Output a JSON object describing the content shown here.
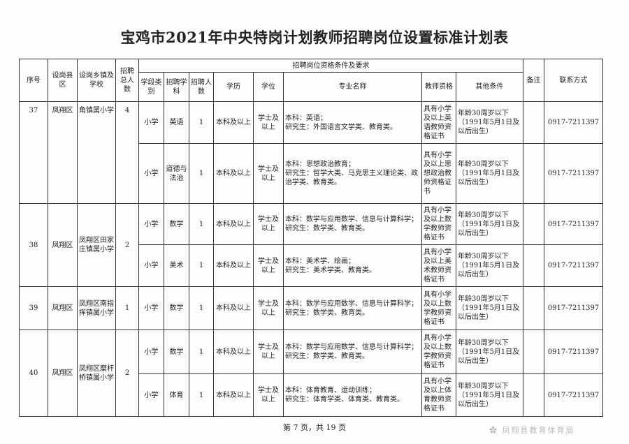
{
  "title": "宝鸡市2021年中央特岗计划教师招聘岗位设置标准计划表",
  "headers": {
    "no": "序号",
    "county": "设岗县区",
    "school": "设岗乡镇及学校",
    "total": "招聘总人数",
    "group": "招聘岗位资格条件及要求",
    "stage": "学段类别",
    "subject": "招聘学科",
    "count": "招聘人数",
    "edu": "学历",
    "degree": "学位",
    "major": "专业名称",
    "cert": "教师资格",
    "other": "其他条件",
    "remark": "备注",
    "contact": "联系方式"
  },
  "groups": [
    {
      "no": "37",
      "county": "凤翔区",
      "school": "角镇属小学",
      "total": "4",
      "rows": [
        {
          "stage": "小学",
          "subject": "英语",
          "count": "1",
          "edu": "本科及以上",
          "degree": "学士及以上",
          "major": "本科：英语；\n研究生：外国语言文学类、教育类。",
          "cert": "具有小学及以上英语教师资格证书",
          "other": "年龄30周岁以下（1991年5月1日及以后出生）",
          "remark": "",
          "contact": "0917-7211397"
        },
        {
          "stage": "小学",
          "subject": "道德与法治",
          "count": "1",
          "edu": "本科及以上",
          "degree": "学士及以上",
          "major": "本科：思想政治教育；\n研究生：哲学大类、马克思主义理论类、政治学类、教育类。",
          "cert": "具有小学及以上思想政治教师资格证书",
          "other": "年龄30周岁以下（1991年5月1日及以后出生）",
          "remark": "",
          "contact": "0917-7211397"
        }
      ]
    },
    {
      "no": "38",
      "county": "凤翔区",
      "school": "凤翔区田家庄镇属小学",
      "total": "2",
      "rows": [
        {
          "stage": "小学",
          "subject": "数学",
          "count": "1",
          "edu": "本科及以上",
          "degree": "学士及以上",
          "major": "本科：数学与应用数学、信息与计算科学；\n研究生：数学类、教育类。",
          "cert": "具有小学及以上数学教师资格证书",
          "other": "年龄30周岁以下（1991年5月1日及以后出生）",
          "remark": "",
          "contact": "0917-7211397"
        },
        {
          "stage": "小学",
          "subject": "美术",
          "count": "1",
          "edu": "本科及以上",
          "degree": "学士及以上",
          "major": "本科：美术学、绘画；\n研究生：美术学类、教育类。",
          "cert": "具有小学及以上美术教师资格证书",
          "other": "年龄30周岁以下（1991年5月1日及以后出生）",
          "remark": "",
          "contact": "0917-7211397"
        }
      ]
    },
    {
      "no": "39",
      "county": "凤翔区",
      "school": "凤翔区南指挥镇属小学",
      "total": "1",
      "rows": [
        {
          "stage": "小学",
          "subject": "数学",
          "count": "1",
          "edu": "本科及以上",
          "degree": "学士及以上",
          "major": "本科：数学与应用数学、信息与计算科学；\n研究生：数学类、教育类。",
          "cert": "具有小学及以上数学教师资格证书",
          "other": "年龄30周岁以下（1991年5月1日及以后出生）",
          "remark": "",
          "contact": "0917-7211397"
        }
      ]
    },
    {
      "no": "40",
      "county": "凤翔区",
      "school": "凤翔区糜杆桥镇属小学",
      "total": "2",
      "rows": [
        {
          "stage": "小学",
          "subject": "数学",
          "count": "1",
          "edu": "本科及以上",
          "degree": "学士及以上",
          "major": "本科：数学与应用数学、信息与计算科学；\n研究生：数学类、教育类。",
          "cert": "具有小学及以上数学教师资格证书",
          "other": "年龄30周岁以下（1991年5月1日及以后出生）",
          "remark": "",
          "contact": "0917-7211397"
        },
        {
          "stage": "小学",
          "subject": "体育",
          "count": "1",
          "edu": "本科及以上",
          "degree": "学士及以上",
          "major": "本科：体育教育、运动训练；\n研究生：体育学类、体育类、教育类。",
          "cert": "具有小学及以上体育教师资格证书",
          "other": "年龄30周岁以下（1991年5月1日及以后出生）",
          "remark": "",
          "contact": "0917-7211397"
        }
      ]
    }
  ],
  "footer": "第 7 页，共 19 页",
  "watermark": "凤翔县教育体育局"
}
